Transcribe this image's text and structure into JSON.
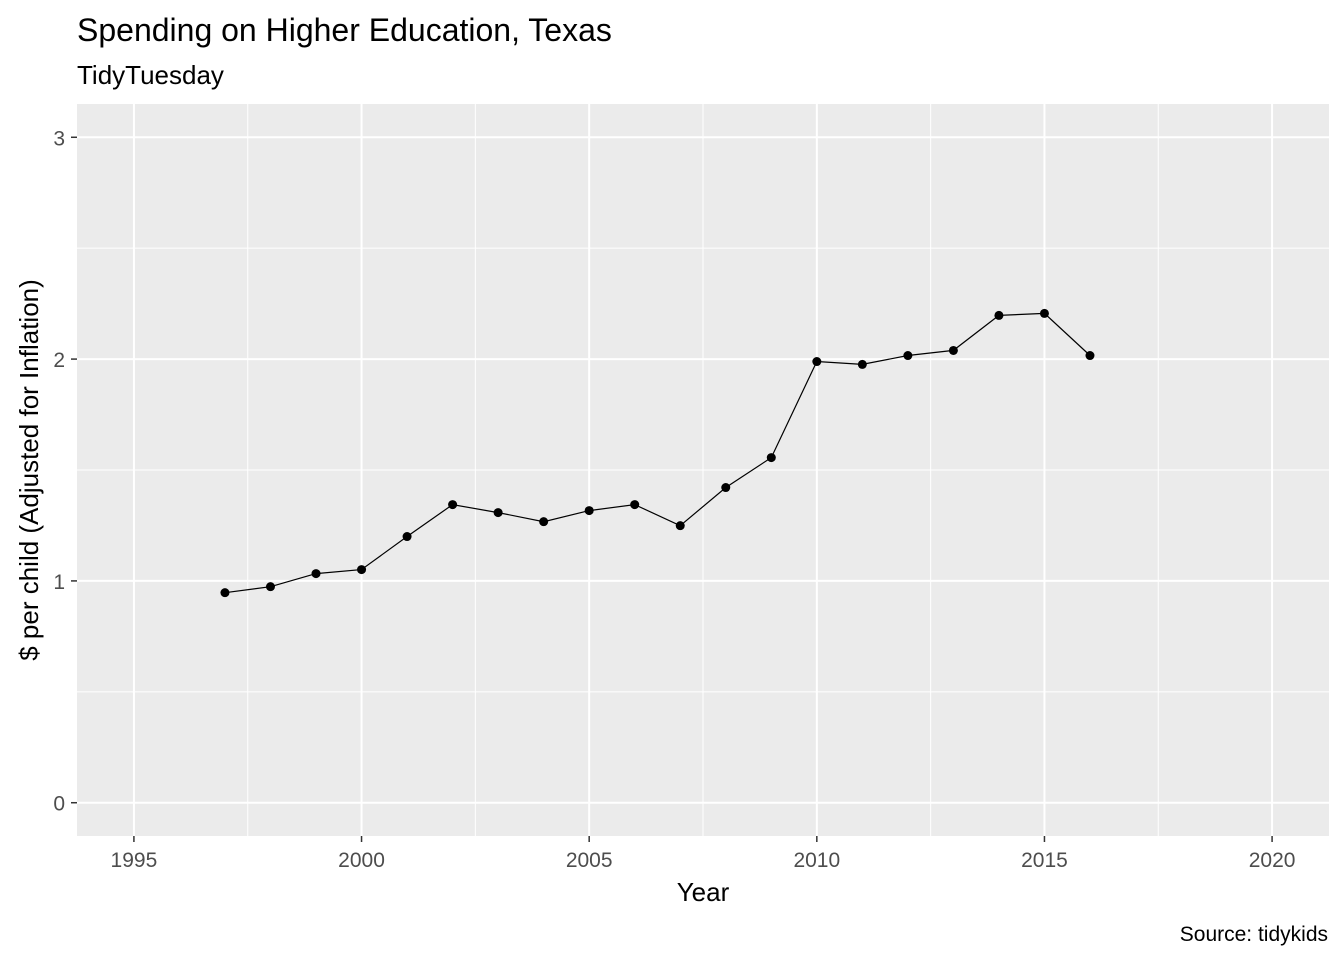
{
  "chart_data": {
    "type": "line",
    "title": "Spending on Higher Education, Texas",
    "subtitle": "TidyTuesday",
    "xlabel": "Year",
    "ylabel": "$ per child (Adjusted for Inflation)",
    "caption": "Source: tidykids",
    "xlim": [
      1993.75,
      2021.25
    ],
    "ylim": [
      -0.15,
      3.15
    ],
    "xticks": [
      1995,
      2000,
      2005,
      2010,
      2015,
      2020
    ],
    "xtick_labels": [
      "1995",
      "2000",
      "2005",
      "2010",
      "2015",
      "2020"
    ],
    "yticks": [
      0,
      1,
      2,
      3
    ],
    "ytick_labels": [
      "0",
      "1",
      "2",
      "3"
    ],
    "grid": true,
    "legend": "none",
    "colors": {
      "panel": "#EBEBEB",
      "grid": "#FFFFFF",
      "line": "#000000",
      "point": "#000000"
    },
    "x": [
      1997,
      1998,
      1999,
      2000,
      2001,
      2002,
      2003,
      2004,
      2005,
      2006,
      2007,
      2008,
      2009,
      2010,
      2011,
      2012,
      2013,
      2014,
      2015,
      2016
    ],
    "y": [
      0.947,
      0.974,
      1.033,
      1.051,
      1.2,
      1.344,
      1.308,
      1.267,
      1.317,
      1.344,
      1.249,
      1.421,
      1.556,
      1.989,
      1.976,
      2.016,
      2.039,
      2.197,
      2.206,
      2.016
    ]
  }
}
